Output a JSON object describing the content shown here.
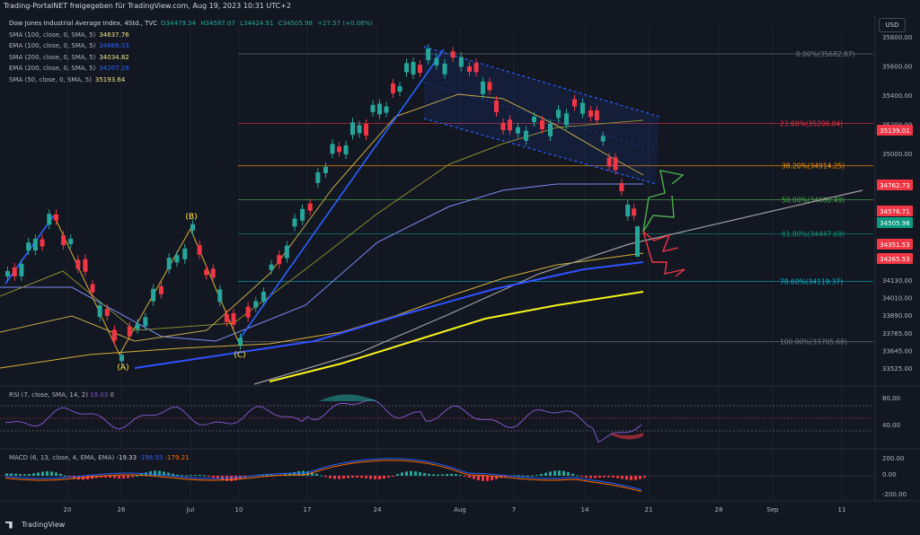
{
  "caption": "Trading-PortalNET freigegeben für TradingView.com, Aug 19, 2023 10:31 UTC+2",
  "header": {
    "title": "Dow Jones Industrial Average Index, 4Std., TVC",
    "ohlc": {
      "o": "O34479.34",
      "h": "H34587.07",
      "l": "L34424.91",
      "c": "C34505.98",
      "chg": "+27.57 (+0.08%)"
    },
    "indicators": [
      {
        "label": "SMA (100, close, 0, SMA, 5)",
        "value": "34637.76",
        "color": "#f0e68c"
      },
      {
        "label": "EMA (100, close, 0, SMA, 5)",
        "value": "34666.33",
        "color": "#2962ff"
      },
      {
        "label": "SMA (200, close, 0, SMA, 5)",
        "value": "34034.82",
        "color": "#f0e68c"
      },
      {
        "label": "EMA (200, close, 0, SMA, 5)",
        "value": "34207.28",
        "color": "#2962ff"
      },
      {
        "label": "SMA (50, close, 0, SMA, 5)",
        "value": "35193.64",
        "color": "#f0e68c"
      }
    ]
  },
  "currency": "USD",
  "rsi_label": {
    "text": "RSI (7, close, SMA, 14, 2)",
    "value": "19.03",
    "extra": "0"
  },
  "macd_label": {
    "text": "MACD (6, 13, close, 4, EMA, EMA)",
    "v1": "-19.33",
    "v2": "-198.55",
    "v3": "-179.21"
  },
  "logo": "TradingView",
  "colors": {
    "bg": "#131722",
    "up": "#26a69a",
    "down": "#f23645",
    "grid": "#1e222d",
    "text": "#b2b5be"
  },
  "chart_data": {
    "type": "candlestick",
    "price_axis": {
      "ylim": [
        33510,
        35810
      ],
      "ticks": [
        35800,
        35600,
        35400,
        35200,
        35000,
        34800,
        34600,
        34400,
        34130,
        34010,
        33890,
        33765,
        33645,
        33525
      ]
    },
    "time_axis_labels": [
      "20",
      "26",
      "Jul",
      "10",
      "17",
      "24",
      "Aug",
      "7",
      "14",
      "21",
      "28",
      "Sep",
      "11"
    ],
    "price_tags": [
      {
        "value": "35139.01",
        "color": "#f23645"
      },
      {
        "value": "34762.73",
        "color": "#f23645"
      },
      {
        "value": "34576.71",
        "color": "#f23645"
      },
      {
        "value": "34505.98",
        "color": "#089981"
      },
      {
        "value": "34351.53",
        "color": "#f23645"
      },
      {
        "value": "34265.53",
        "color": "#f23645"
      }
    ],
    "fibonacci": [
      {
        "label": "0.00%(35682.87)",
        "price": 35682.87,
        "color": "#787b86"
      },
      {
        "label": "23.60%(35206.04)",
        "price": 35206.04,
        "color": "#f23645"
      },
      {
        "label": "38.20%(34914.25)",
        "price": 34914.25,
        "color": "#ff9800"
      },
      {
        "label": "50.00%(34680.49)",
        "price": 34680.49,
        "color": "#4caf50"
      },
      {
        "label": "61.80%(34447.69)",
        "price": 34447.69,
        "color": "#089981"
      },
      {
        "label": "78.60%(34119.37)",
        "price": 34119.37,
        "color": "#00bcd4"
      },
      {
        "label": "100.00%(33705.68)",
        "price": 33705.68,
        "color": "#787b86"
      }
    ],
    "wave_labels": [
      "(A)",
      "(B)",
      "(C)"
    ],
    "rsi_axis_ticks": [
      "80.00",
      "40.00"
    ],
    "macd_axis_ticks": [
      "200.00",
      "0.00",
      "-200.00"
    ]
  }
}
